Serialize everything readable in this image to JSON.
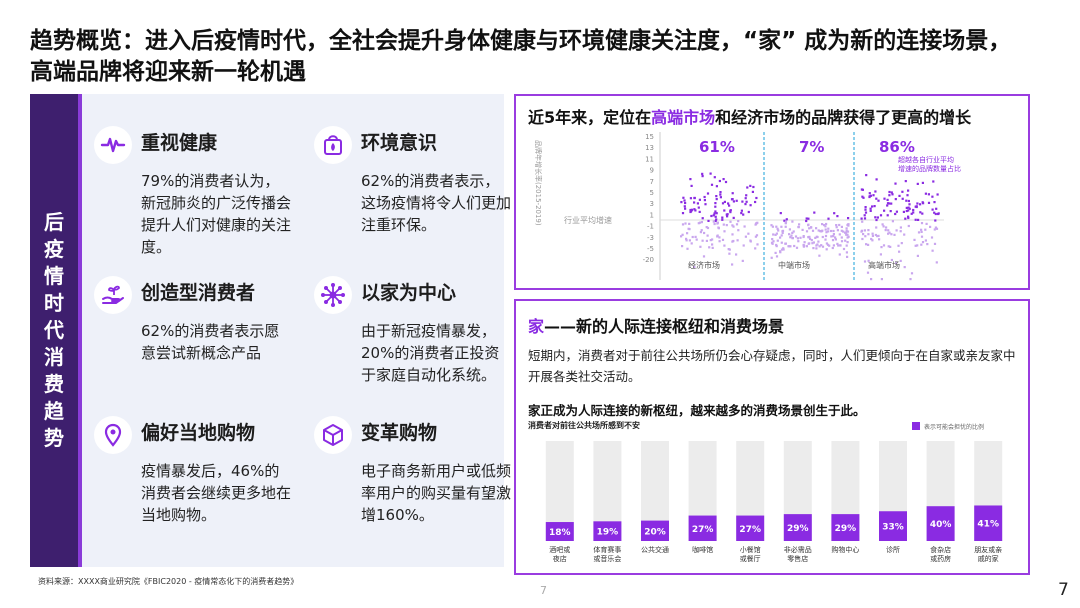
{
  "title": "趋势概览：进入后疫情时代，全社会提升身体健康与环境健康关注度，“家” 成为新的连接场景，高端品牌将迎来新一轮机遇",
  "sidebar_label": "后疫情时代消费趋势",
  "cards": [
    {
      "title": "重视健康",
      "body": "79%的消费者认为，新冠肺炎的广泛传播会提升人们对健康的关注度。",
      "icon": "heartbeat-icon"
    },
    {
      "title": "环境意识",
      "body": "62%的消费者表示，这场疫情将令人们更加注重环保。",
      "icon": "eco-bag-icon"
    },
    {
      "title": "创造型消费者",
      "body": "62%的消费者表示愿意尝试新概念产品",
      "icon": "hand-sprout-icon"
    },
    {
      "title": "以家为中心",
      "body": "由于新冠疫情暴发，20%的消费者正投资于家庭自动化系统。",
      "icon": "network-hub-icon"
    },
    {
      "title": "偏好当地购物",
      "body": "疫情暴发后，46%的消费者会继续更多地在当地购物。",
      "icon": "location-pin-icon"
    },
    {
      "title": "变革购物",
      "body": "电子商务新用户或低频率用户的购买量有望激增160%。",
      "icon": "cube-icon"
    }
  ],
  "chart1": {
    "title_pre": "近5年来，定位在",
    "title_hl": "高端市场",
    "title_post": "和经济市场的品牌获得了更高的增长"
  },
  "chart2": {
    "title_hl": "家",
    "title_rest": "——新的人际连接枢纽和消费场景",
    "desc": "短期内，消费者对于前往公共场所仍会心存疑虑，同时，人们更倾向于在自家或亲友家中开展各类社交活动。",
    "subtitle": "家正成为人际连接的新枢纽，越来越多的消费场景创生于此。"
  },
  "chart_data": [
    {
      "type": "scatter",
      "title": "近5年来，定位在高端市场和经济市场的品牌获得了更高的增长",
      "ylabel": "品牌年增长率(2015-2019)",
      "yticks": [
        "15",
        "13",
        "11",
        "9",
        "7",
        "5",
        "3",
        "1",
        "-1",
        "-3",
        "-5",
        "-20"
      ],
      "categories": [
        "经济市场",
        "中端市场",
        "高端市场"
      ],
      "values": [
        61,
        7,
        86
      ],
      "value_labels": [
        "61%",
        "7%",
        "86%"
      ],
      "annotation": "超越各自行业平均增速的品牌数量占比",
      "reference_label": "行业平均增速"
    },
    {
      "type": "bar",
      "title": "消费者对前往公共场所感到不安",
      "legend": "表示可能会担忧的比例",
      "categories": [
        "酒吧或夜店",
        "体育赛事或音乐会",
        "公共交通",
        "咖啡馆",
        "小餐馆或餐厅",
        "非必需品零售店",
        "购物中心",
        "诊所",
        "食杂店或药房",
        "朋友或亲戚的家"
      ],
      "values": [
        18,
        19,
        20,
        27,
        27,
        29,
        29,
        33,
        40,
        41
      ],
      "value_labels": [
        "18%",
        "19%",
        "20%",
        "27%",
        "27%",
        "29%",
        "29%",
        "33%",
        "40%",
        "41%"
      ],
      "ylim": [
        0,
        100
      ]
    }
  ],
  "source": "资料来源：XXXX商业研究院《FBIC2020 - 疫情常态化下的消费者趋势》",
  "page_center": "7",
  "page": "7",
  "colors": {
    "accent": "#8a2be2",
    "dark": "#3e1f6e",
    "panel": "#eef1f9",
    "track": "#ececec"
  }
}
